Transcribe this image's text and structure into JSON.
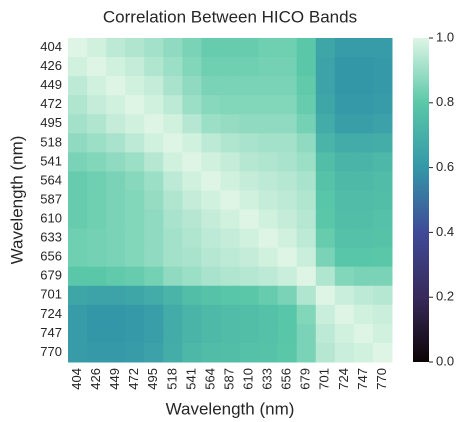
{
  "chart_data": {
    "type": "heatmap",
    "title": "Correlation Between HICO Bands",
    "x_label": "Wavelength (nm)",
    "y_label": "Wavelength (nm)",
    "categories": [
      "404",
      "426",
      "449",
      "472",
      "495",
      "518",
      "541",
      "564",
      "587",
      "610",
      "633",
      "656",
      "679",
      "701",
      "724",
      "747",
      "770"
    ],
    "values": [
      [
        1.0,
        0.98,
        0.95,
        0.93,
        0.91,
        0.88,
        0.85,
        0.82,
        0.82,
        0.82,
        0.83,
        0.83,
        0.8,
        0.66,
        0.62,
        0.62,
        0.62
      ],
      [
        0.98,
        1.0,
        0.98,
        0.96,
        0.93,
        0.9,
        0.86,
        0.83,
        0.83,
        0.83,
        0.84,
        0.84,
        0.8,
        0.65,
        0.6,
        0.6,
        0.61
      ],
      [
        0.95,
        0.98,
        1.0,
        0.98,
        0.96,
        0.92,
        0.88,
        0.85,
        0.85,
        0.85,
        0.85,
        0.85,
        0.81,
        0.65,
        0.6,
        0.6,
        0.61
      ],
      [
        0.93,
        0.96,
        0.98,
        1.0,
        0.98,
        0.95,
        0.9,
        0.87,
        0.86,
        0.86,
        0.86,
        0.86,
        0.82,
        0.66,
        0.61,
        0.61,
        0.62
      ],
      [
        0.91,
        0.93,
        0.96,
        0.98,
        1.0,
        0.98,
        0.94,
        0.9,
        0.89,
        0.88,
        0.88,
        0.88,
        0.84,
        0.68,
        0.63,
        0.63,
        0.64
      ],
      [
        0.88,
        0.9,
        0.92,
        0.95,
        0.98,
        1.0,
        0.98,
        0.95,
        0.93,
        0.92,
        0.91,
        0.91,
        0.88,
        0.72,
        0.68,
        0.68,
        0.69
      ],
      [
        0.85,
        0.86,
        0.88,
        0.9,
        0.94,
        0.98,
        1.0,
        0.98,
        0.96,
        0.94,
        0.93,
        0.92,
        0.9,
        0.76,
        0.72,
        0.72,
        0.73
      ],
      [
        0.82,
        0.83,
        0.85,
        0.87,
        0.9,
        0.95,
        0.98,
        1.0,
        0.98,
        0.96,
        0.95,
        0.94,
        0.92,
        0.78,
        0.74,
        0.74,
        0.75
      ],
      [
        0.82,
        0.83,
        0.85,
        0.86,
        0.89,
        0.93,
        0.96,
        0.98,
        1.0,
        0.98,
        0.96,
        0.95,
        0.93,
        0.79,
        0.75,
        0.75,
        0.76
      ],
      [
        0.82,
        0.83,
        0.85,
        0.86,
        0.88,
        0.92,
        0.94,
        0.96,
        0.98,
        1.0,
        0.98,
        0.96,
        0.94,
        0.8,
        0.76,
        0.76,
        0.77
      ],
      [
        0.83,
        0.84,
        0.85,
        0.86,
        0.88,
        0.91,
        0.93,
        0.95,
        0.96,
        0.98,
        1.0,
        0.98,
        0.95,
        0.82,
        0.77,
        0.77,
        0.78
      ],
      [
        0.83,
        0.84,
        0.85,
        0.86,
        0.88,
        0.91,
        0.92,
        0.94,
        0.95,
        0.96,
        0.98,
        1.0,
        0.97,
        0.85,
        0.79,
        0.79,
        0.8
      ],
      [
        0.8,
        0.8,
        0.81,
        0.82,
        0.84,
        0.88,
        0.9,
        0.92,
        0.93,
        0.94,
        0.95,
        0.97,
        1.0,
        0.93,
        0.86,
        0.85,
        0.85
      ],
      [
        0.66,
        0.65,
        0.65,
        0.66,
        0.68,
        0.72,
        0.76,
        0.78,
        0.79,
        0.8,
        0.82,
        0.85,
        0.93,
        1.0,
        0.97,
        0.95,
        0.94
      ],
      [
        0.62,
        0.6,
        0.6,
        0.61,
        0.63,
        0.68,
        0.72,
        0.74,
        0.75,
        0.76,
        0.77,
        0.79,
        0.86,
        0.97,
        1.0,
        0.98,
        0.97
      ],
      [
        0.62,
        0.6,
        0.6,
        0.61,
        0.63,
        0.68,
        0.72,
        0.74,
        0.75,
        0.76,
        0.77,
        0.79,
        0.85,
        0.95,
        0.98,
        1.0,
        0.98
      ],
      [
        0.62,
        0.61,
        0.61,
        0.62,
        0.64,
        0.69,
        0.73,
        0.75,
        0.76,
        0.77,
        0.78,
        0.8,
        0.85,
        0.94,
        0.97,
        0.98,
        1.0
      ]
    ],
    "zlim": [
      0,
      1
    ],
    "zticks": [
      {
        "value": 0,
        "label": "0.0"
      },
      0.2,
      0.4,
      0.6,
      0.8,
      {
        "value": 1,
        "label": "1.0"
      }
    ],
    "colormap": [
      "#0b0405",
      "#382a5a",
      "#3f4a97",
      "#3497a8",
      "#5ac8a8",
      "#def5e5"
    ]
  }
}
